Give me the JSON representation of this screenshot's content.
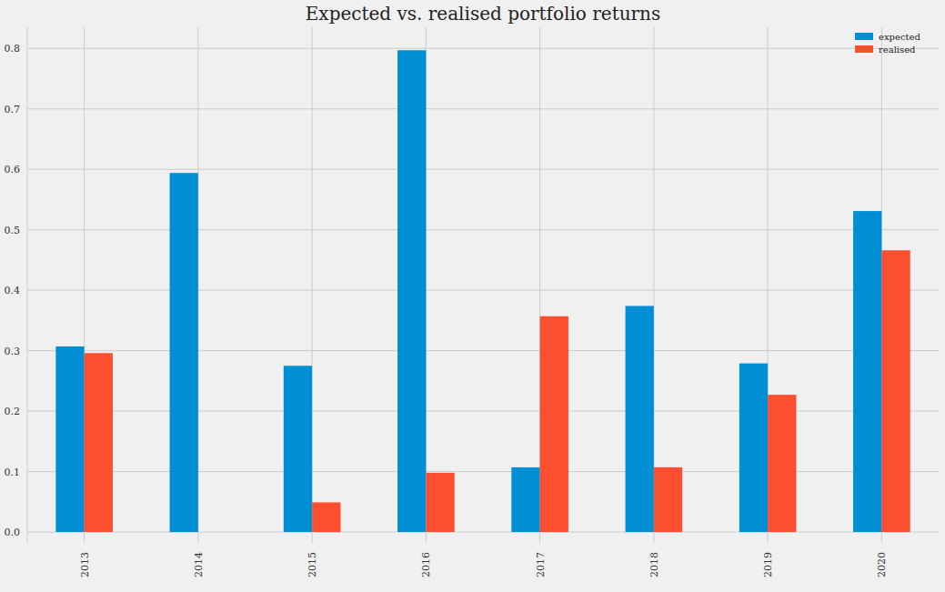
{
  "chart_data": {
    "type": "bar",
    "title": "Expected vs. realised portfolio returns",
    "categories": [
      "2013",
      "2014",
      "2015",
      "2016",
      "2017",
      "2018",
      "2019",
      "2020"
    ],
    "series": [
      {
        "name": "expected",
        "color": "#008fd5",
        "values": [
          0.307,
          0.594,
          0.275,
          0.797,
          0.107,
          0.374,
          0.279,
          0.531
        ]
      },
      {
        "name": "realised",
        "color": "#fc4f30",
        "values": [
          0.296,
          0.0,
          0.049,
          0.098,
          0.357,
          0.107,
          0.227,
          0.466
        ]
      }
    ],
    "ylim": [
      -0.018,
      0.835
    ],
    "yticks": [
      {
        "value": 0,
        "label": "0.0"
      },
      0.1,
      0.2,
      0.3,
      0.4,
      0.5,
      0.6,
      0.7,
      0.8
    ],
    "grid": true,
    "legend": "upper-right"
  }
}
